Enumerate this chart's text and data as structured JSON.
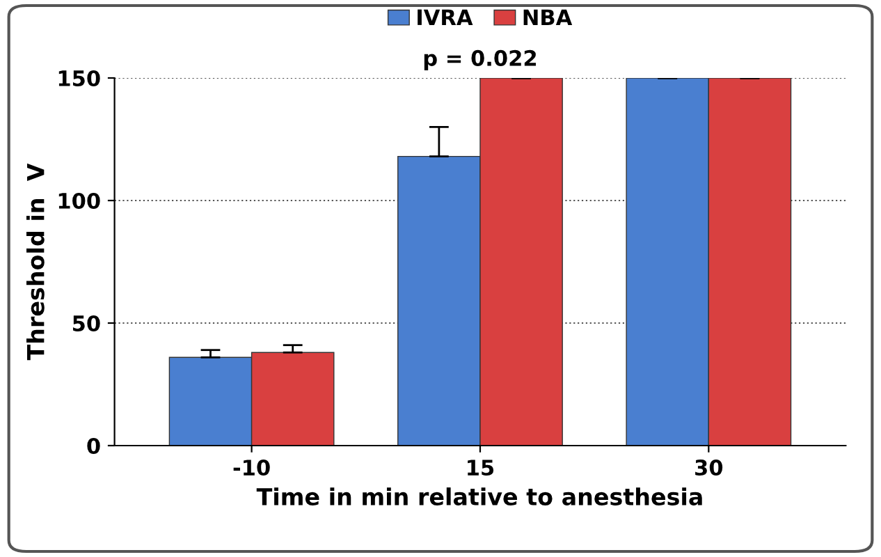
{
  "chart_data": {
    "type": "bar",
    "xlabel": "Time in min relative to anesthesia",
    "ylabel": "Threshold in  V",
    "categories": [
      "-10",
      "15",
      "30"
    ],
    "series": [
      {
        "name": "IVRA",
        "color": "#4a7fd0",
        "values": [
          36,
          118,
          150
        ],
        "errors": [
          [
            36,
            39
          ],
          [
            118,
            130
          ],
          [
            150,
            150
          ]
        ]
      },
      {
        "name": "NBA",
        "color": "#d94040",
        "values": [
          38,
          150,
          150
        ],
        "errors": [
          [
            38,
            41
          ],
          [
            150,
            150
          ],
          [
            150,
            150
          ]
        ]
      }
    ],
    "annotations": [
      {
        "text": "p = 0.022",
        "x": "15",
        "y": 150
      }
    ],
    "ylim": [
      0,
      150
    ],
    "yticks": [
      0,
      50,
      100,
      150
    ],
    "grid": "y",
    "legend": "top"
  }
}
